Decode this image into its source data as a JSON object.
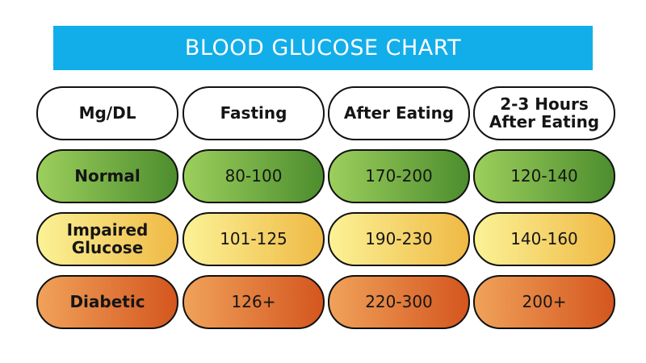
{
  "chart_data": {
    "type": "table",
    "title": "BLOOD GLUCOSE CHART",
    "columns": [
      "Mg/DL",
      "Fasting",
      "After Eating",
      "2-3 Hours\nAfter Eating"
    ],
    "rows": [
      {
        "label": "Normal",
        "values": [
          "80-100",
          "170-200",
          "120-140"
        ],
        "color": "normal"
      },
      {
        "label": "Impaired\nGlucose",
        "values": [
          "101-125",
          "190-230",
          "140-160"
        ],
        "color": "impaired"
      },
      {
        "label": "Diabetic",
        "values": [
          "126+",
          "220-300",
          "200+"
        ],
        "color": "diabetic"
      }
    ]
  },
  "colors": {
    "banner": "#12aeea",
    "normal": [
      "#9ccf5c",
      "#4d8d2e"
    ],
    "impaired": [
      "#fbf296",
      "#efb945"
    ],
    "diabetic": [
      "#f0a25a",
      "#d4561f"
    ]
  }
}
